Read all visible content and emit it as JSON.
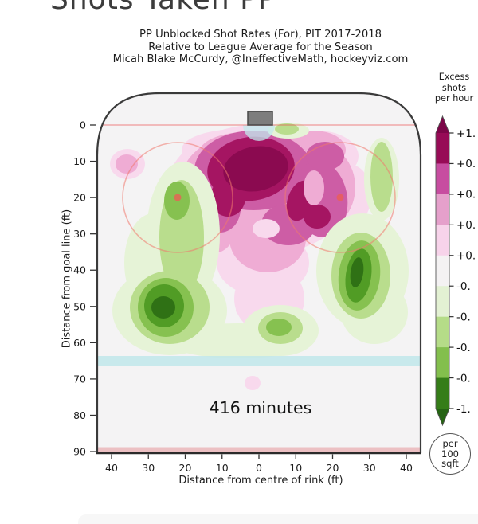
{
  "page": {
    "heading": "Shots Taken PP"
  },
  "header": {
    "subtitle_block": "PP Unblocked Shot Rates (For), PIT 2017-2018\nRelative to League Average for the Season\nMicah Blake McCurdy, @IneffectiveMath, hockeyviz.com"
  },
  "colorbar": {
    "title": "Excess\nshots\nper hour",
    "tick_labels": [
      "+1.",
      "+0.",
      "+0.",
      "+0.",
      "+0.",
      "-0.",
      "-0.",
      "-0.",
      "-0.",
      "-1."
    ],
    "unit_badge": "per\n100\nsqft"
  },
  "plot": {
    "annotation": "416 minutes",
    "x_axis": {
      "label": "Distance from centre of rink (ft)",
      "ticks": [
        "40",
        "30",
        "20",
        "10",
        "0",
        "10",
        "20",
        "30",
        "40"
      ]
    },
    "y_axis": {
      "label": "Distance from goal line (ft)",
      "ticks": [
        "0",
        "10",
        "20",
        "30",
        "40",
        "50",
        "60",
        "70",
        "80",
        "90"
      ]
    }
  },
  "palette": {
    "pink_levels": [
      "#f8d9ed",
      "#efacd4",
      "#cd5da5",
      "#a51562",
      "#8b0a50"
    ],
    "green_levels": [
      "#e6f3d7",
      "#b9dd8d",
      "#86c150",
      "#519c25",
      "#2f7115"
    ],
    "neutral": "#f4f2f3",
    "cbar_bands": [
      "#970b56",
      "#c74da0",
      "#e5a0cb",
      "#f7d3ea",
      "#f4f2f3",
      "#e3f1d3",
      "#b5dc88",
      "#83bf4d",
      "#357d18"
    ],
    "cbar_arrow_top": "#7c0648",
    "cbar_arrow_bottom": "#256313",
    "ice": "#f4f3f4",
    "net": "#7d7d7d",
    "crease": "#c2e9ee",
    "blue_line": "#bfe6ea"
  },
  "chart_data": {
    "type": "heatmap",
    "title": "PP Unblocked Shot Rates (For), PIT 2017-2018",
    "subtitle": "Relative to League Average for the Season",
    "attribution": "Micah Blake McCurdy, @IneffectiveMath, hockeyviz.com",
    "page_heading": "Shots Taken PP",
    "sample": "416 minutes",
    "xlabel": "Distance from centre of rink (ft)",
    "ylabel": "Distance from goal line (ft)",
    "x_ticks": [
      40,
      30,
      20,
      10,
      0,
      10,
      20,
      30,
      40
    ],
    "y_ticks": [
      0,
      10,
      20,
      30,
      40,
      50,
      60,
      70,
      80,
      90
    ],
    "legend": {
      "label": "Excess shots per hour",
      "unit": "per 100 sqft",
      "visible_tick_labels": [
        "+1.",
        "+0.",
        "+0.",
        "+0.",
        "+0.",
        "-0.",
        "-0.",
        "-0.",
        "-0.",
        "-1."
      ]
    },
    "regions": [
      {
        "area": "slot, centred ~2 ft left of rink centre, 5-25 ft from goal line",
        "excess": "+1.0 (maximum, dark magenta core)"
      },
      {
        "area": "right faceoff circle interior, 15-32 ft from goal line",
        "excess": "+0.6 to +0.8"
      },
      {
        "area": "broad pink halo from goal line to ~40 ft, tail down centre to ~57 ft",
        "excess": "+0.2 to +0.4"
      },
      {
        "area": "small pink spots: top-left corner (~-36 ft, 10 ft), (-5 ft, 51 ft), (-2 ft, 71 ft)",
        "excess": "+0.2"
      },
      {
        "area": "left-wing boards, 35-58 ft from goal line",
        "excess": "-1.0 (minimum, dark green core at ~-26 ft, 49 ft)"
      },
      {
        "area": "right-wing boards, 28-55 ft from goal line",
        "excess": "-0.8 (dark green core at ~27 ft, 42 ft)"
      },
      {
        "area": "centre point, 50-60 ft",
        "excess": "-0.4"
      },
      {
        "area": "right boards near goal line (~33 ft, 5-22 ft) and beside net",
        "excess": "-0.2 to -0.4"
      }
    ]
  }
}
